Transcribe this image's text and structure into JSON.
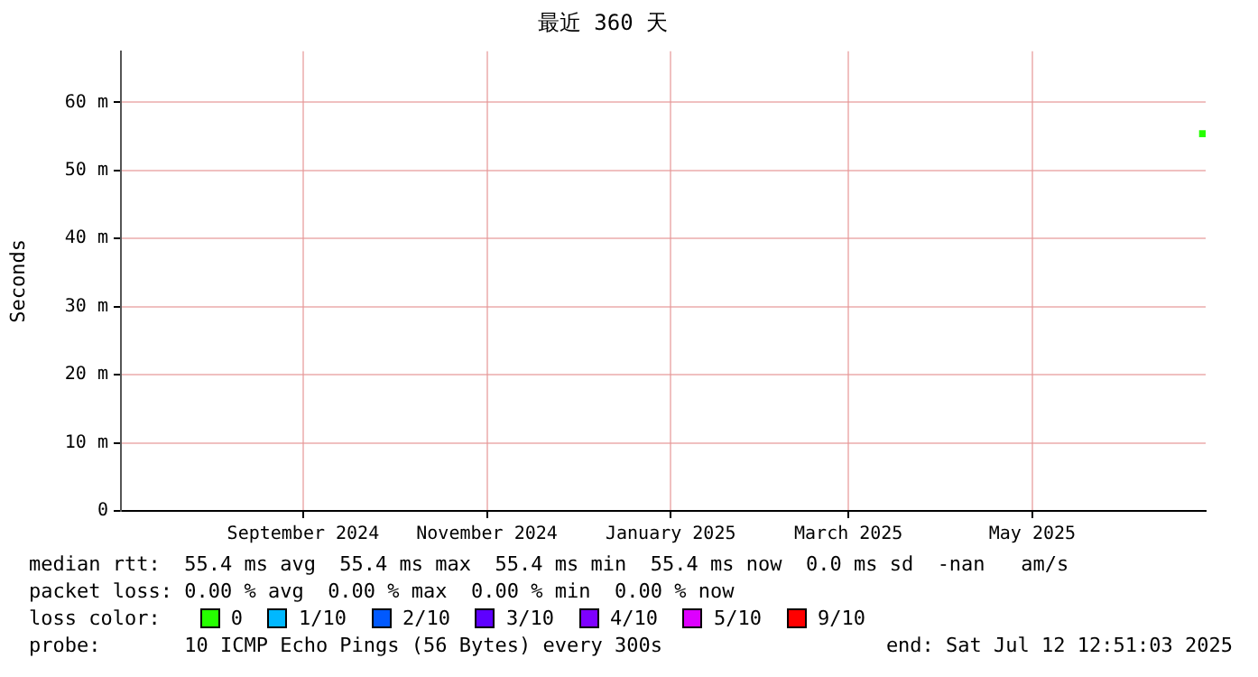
{
  "chart_data": {
    "type": "scatter",
    "title": "最近 360 天",
    "ylabel": "Seconds",
    "xlim": [
      "2024-07-17T12:51",
      "2025-07-12T12:51"
    ],
    "xticks": [
      {
        "value": "2024-09-16",
        "label": "September 2024"
      },
      {
        "value": "2024-11-16",
        "label": "November 2024"
      },
      {
        "value": "2025-01-16",
        "label": "January 2025"
      },
      {
        "value": "2025-03-16",
        "label": "March 2025"
      },
      {
        "value": "2025-05-16",
        "label": "May 2025"
      }
    ],
    "ylim": [
      0,
      67.5
    ],
    "yticks": [
      {
        "value": 0,
        "label": "0"
      },
      {
        "value": 10,
        "label": "10 m"
      },
      {
        "value": 20,
        "label": "20 m"
      },
      {
        "value": 30,
        "label": "30 m"
      },
      {
        "value": 40,
        "label": "40 m"
      },
      {
        "value": 50,
        "label": "50 m"
      },
      {
        "value": 60,
        "label": "60 m"
      }
    ],
    "x": [
      "2025-07-11T12:00"
    ],
    "series": [
      {
        "name": "0",
        "color": "#26ff00",
        "values": [
          55.4
        ]
      },
      {
        "name": "1/10",
        "color": "#00b8ff",
        "values": [
          null
        ]
      },
      {
        "name": "2/10",
        "color": "#0059ff",
        "values": [
          null
        ]
      },
      {
        "name": "3/10",
        "color": "#5e00ff",
        "values": [
          null
        ]
      },
      {
        "name": "4/10",
        "color": "#7e00ff",
        "values": [
          null
        ]
      },
      {
        "name": "5/10",
        "color": "#dd00ff",
        "values": [
          null
        ]
      },
      {
        "name": "9/10",
        "color": "#ff0000",
        "values": [
          null
        ]
      }
    ],
    "marker": "square",
    "grid": true,
    "legend": "bottom",
    "annotations": [
      "median rtt:  55.4 ms avg  55.4 ms max  55.4 ms min  55.4 ms now  0.0 ms sd  -nan   am/s",
      "packet loss: 0.00 % avg  0.00 % max  0.00 % min  0.00 % now",
      "loss color:",
      "probe:       10 ICMP Echo Pings (56 Bytes) every 300s",
      "end: Sat Jul 12 12:51:03 2025"
    ]
  }
}
